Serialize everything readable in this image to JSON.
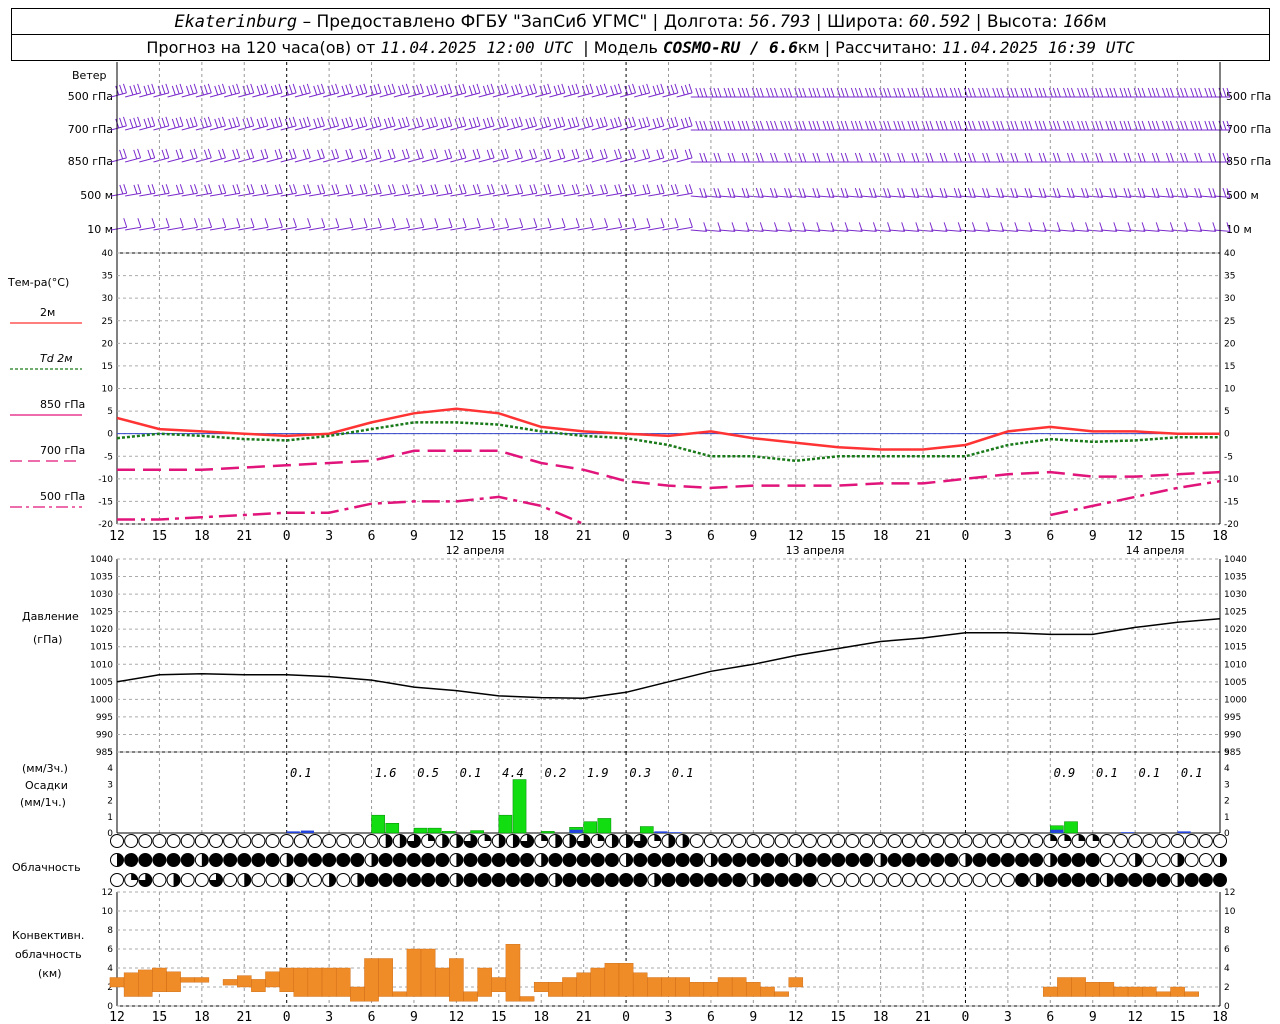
{
  "header": {
    "station": "Ekaterinburg",
    "provider": "– Предоставлено ФГБУ \"ЗапСиб УГМС\" | Долгота:",
    "lon": "56.793",
    "lat_label": "| Широта:",
    "lat": "60.592",
    "alt_label": "| Высота:",
    "alt": "166",
    "alt_unit": "м",
    "line2_a": "Прогноз на 120 часа(ов) от",
    "run": "11.04.2025 12:00 UTC",
    "line2_b": "| Модель",
    "model": "COSMO-RU / 6.6",
    "model_unit": "км",
    "line2_c": "| Рассчитано:",
    "computed": "11.04.2025 16:39 UTC"
  },
  "wind_panel": {
    "title": "Ветер",
    "levels": [
      "500 гПа",
      "700 гПа",
      "850 гПа",
      "500 м",
      "10  м"
    ]
  },
  "temp_panel": {
    "title": "Тем-ра(°C)",
    "legend": [
      {
        "label": "2м",
        "color": "#ff3333",
        "style": "solid"
      },
      {
        "label": "Td  2м",
        "color": "#1a7a1a",
        "style": "dotted"
      },
      {
        "label": "850 гПа",
        "color": "#e0147a",
        "style": "solid"
      },
      {
        "label": "700 гПа",
        "color": "#e0147a",
        "style": "dashed"
      },
      {
        "label": "500 гПа",
        "color": "#e0147a",
        "style": "dashdot"
      }
    ]
  },
  "pressure_panel": {
    "title": "Давление",
    "unit": "(гПа)"
  },
  "precip_panel": {
    "title_a": "(мм/3ч.)",
    "title_b": "Осадки",
    "title_c": "(мм/1ч.)"
  },
  "cloud_panel": {
    "title": "Облачность"
  },
  "conv_panel": {
    "title_a": "Конвективн.",
    "title_b": "облачность",
    "title_c": "(км)"
  },
  "date_labels": [
    "12 апреля",
    "13 апреля",
    "14 апреля"
  ],
  "x_ticks": [
    "12",
    "15",
    "18",
    "21",
    "0",
    "3",
    "6",
    "9",
    "12",
    "15",
    "18",
    "21",
    "0",
    "3",
    "6",
    "9",
    "12",
    "15",
    "18",
    "21",
    "0",
    "3",
    "6",
    "9",
    "12",
    "15",
    "18"
  ],
  "chart_data": {
    "type": "line",
    "x_hours": [
      0,
      3,
      6,
      9,
      12,
      15,
      18,
      21,
      24,
      27,
      30,
      33,
      36,
      39,
      42,
      45,
      48,
      51,
      54,
      57,
      60,
      63,
      66,
      69,
      72,
      75,
      78
    ],
    "temperature": {
      "ylim": [
        -20,
        40
      ],
      "ticks": [
        40,
        35,
        30,
        25,
        20,
        15,
        10,
        5,
        0,
        -5,
        -10,
        -15,
        -20
      ],
      "t2m": [
        3.5,
        1,
        0.5,
        0,
        -0.5,
        0,
        2.5,
        4.5,
        5.5,
        4.5,
        1.5,
        0.5,
        0,
        -0.5,
        0.5,
        -1,
        -2,
        -3,
        -3.5,
        -3.5,
        -2.5,
        0.5,
        1.5,
        0.5,
        0.5,
        0,
        0
      ],
      "td2m": [
        -1,
        0,
        -0.5,
        -1.2,
        -1.5,
        -0.5,
        1,
        2.5,
        2.5,
        2,
        0.5,
        -0.5,
        -1,
        -2.5,
        -5,
        -5,
        -6,
        -5,
        -5,
        -5,
        -5,
        -2.5,
        -1.2,
        -1.8,
        -1.5,
        -0.8,
        -0.8
      ],
      "t850": [
        null,
        null,
        null,
        null,
        null,
        null,
        null,
        null,
        null,
        null,
        null,
        null,
        null,
        null,
        null,
        null,
        null,
        null,
        null,
        null,
        null,
        null,
        null,
        null,
        null,
        null,
        null
      ],
      "t700": [
        -8,
        -8,
        -8,
        -7.5,
        -7,
        -6.5,
        -6,
        -3.8,
        -3.8,
        -3.8,
        -6.5,
        -8,
        -10.5,
        -11.5,
        -12,
        -11.5,
        -11.5,
        -11.5,
        -11,
        -11,
        -10,
        -9,
        -8.5,
        -9.5,
        -9.5,
        -9,
        -8.5
      ],
      "t500": [
        -19,
        -19,
        -18.5,
        -18,
        -17.5,
        -17.5,
        -15.5,
        -15,
        -15,
        -14,
        -16,
        -20,
        null,
        null,
        null,
        null,
        null,
        null,
        null,
        null,
        null,
        null,
        -18,
        -16,
        -14,
        -12,
        -10.5
      ]
    },
    "pressure": {
      "ylim": [
        985,
        1040
      ],
      "ticks": [
        1040,
        1035,
        1030,
        1025,
        1020,
        1015,
        1010,
        1005,
        1000,
        995,
        990,
        985
      ],
      "values": [
        1005,
        1007,
        1007.3,
        1007,
        1007,
        1006.5,
        1005.5,
        1003.5,
        1002.5,
        1001,
        1000.5,
        1000.3,
        1002,
        1005,
        1008,
        1010,
        1012.5,
        1014.5,
        1016.5,
        1017.5,
        1019,
        1019,
        1018.5,
        1018.5,
        1020.5,
        1022,
        1023
      ]
    },
    "precipitation": {
      "ylim": [
        0,
        5
      ],
      "ticks": [
        5,
        4,
        3,
        2,
        1,
        0
      ],
      "totals_3h": [
        {
          "hour": 13,
          "text": "0.1"
        },
        {
          "hour": 19,
          "text": "1.6"
        },
        {
          "hour": 22,
          "text": "0.5"
        },
        {
          "hour": 25,
          "text": "0.1"
        },
        {
          "hour": 28,
          "text": "4.4"
        },
        {
          "hour": 31,
          "text": "0.2"
        },
        {
          "hour": 34,
          "text": "1.9"
        },
        {
          "hour": 37,
          "text": "0.3"
        },
        {
          "hour": 40,
          "text": "0.1"
        },
        {
          "hour": 67,
          "text": "0.9"
        },
        {
          "hour": 70,
          "text": "0.1"
        },
        {
          "hour": 73,
          "text": "0.1"
        },
        {
          "hour": 76,
          "text": "0.1"
        }
      ],
      "rain_1h": [
        {
          "hour": 19,
          "value": 1.1
        },
        {
          "hour": 20,
          "value": 0.6
        },
        {
          "hour": 22,
          "value": 0.3
        },
        {
          "hour": 23,
          "value": 0.3
        },
        {
          "hour": 24,
          "value": 0.1
        },
        {
          "hour": 26,
          "value": 0.15
        },
        {
          "hour": 28,
          "value": 1.1
        },
        {
          "hour": 29,
          "value": 3.3
        },
        {
          "hour": 31,
          "value": 0.1
        },
        {
          "hour": 33,
          "value": 0.35
        },
        {
          "hour": 34,
          "value": 0.7
        },
        {
          "hour": 35,
          "value": 0.9
        },
        {
          "hour": 38,
          "value": 0.4
        },
        {
          "hour": 67,
          "value": 0.45
        },
        {
          "hour": 68,
          "value": 0.7
        }
      ],
      "snow_1h": [
        {
          "hour": 13,
          "value": 0.1
        },
        {
          "hour": 14,
          "value": 0.15
        },
        {
          "hour": 33,
          "value": 0.2
        },
        {
          "hour": 39,
          "value": 0.1
        },
        {
          "hour": 40,
          "value": 0.05
        },
        {
          "hour": 67,
          "value": 0.2
        },
        {
          "hour": 72,
          "value": 0.05
        },
        {
          "hour": 76,
          "value": 0.1
        }
      ]
    },
    "convective_cloud": {
      "ylim": [
        0,
        12
      ],
      "ticks": [
        12,
        10,
        8,
        6,
        4,
        2,
        0
      ],
      "bars": [
        {
          "h": 0,
          "base": 2,
          "top": 3
        },
        {
          "h": 1,
          "base": 1,
          "top": 3.5
        },
        {
          "h": 2,
          "base": 1,
          "top": 3.8
        },
        {
          "h": 3,
          "base": 1.5,
          "top": 4
        },
        {
          "h": 4,
          "base": 1.5,
          "top": 3.6
        },
        {
          "h": 5,
          "base": 2.5,
          "top": 3
        },
        {
          "h": 6,
          "base": 2.5,
          "top": 3
        },
        {
          "h": 8,
          "base": 2.2,
          "top": 2.8
        },
        {
          "h": 9,
          "base": 2,
          "top": 3.2
        },
        {
          "h": 10,
          "base": 1.5,
          "top": 2.8
        },
        {
          "h": 11,
          "base": 2,
          "top": 3.6
        },
        {
          "h": 12,
          "base": 1.5,
          "top": 4
        },
        {
          "h": 13,
          "base": 1,
          "top": 4
        },
        {
          "h": 14,
          "base": 1,
          "top": 4
        },
        {
          "h": 15,
          "base": 1,
          "top": 4
        },
        {
          "h": 16,
          "base": 1,
          "top": 4
        },
        {
          "h": 17,
          "base": 0.5,
          "top": 2
        },
        {
          "h": 18,
          "base": 0.5,
          "top": 5
        },
        {
          "h": 19,
          "base": 1,
          "top": 5
        },
        {
          "h": 20,
          "base": 1,
          "top": 1.5
        },
        {
          "h": 21,
          "base": 1,
          "top": 6
        },
        {
          "h": 22,
          "base": 1,
          "top": 6
        },
        {
          "h": 23,
          "base": 1,
          "top": 4
        },
        {
          "h": 24,
          "base": 0.5,
          "top": 5
        },
        {
          "h": 25,
          "base": 0.5,
          "top": 1.5
        },
        {
          "h": 26,
          "base": 1,
          "top": 4
        },
        {
          "h": 27,
          "base": 1.5,
          "top": 3
        },
        {
          "h": 28,
          "base": 0.5,
          "top": 6.5
        },
        {
          "h": 29,
          "base": 0.5,
          "top": 1
        },
        {
          "h": 30,
          "base": 1.5,
          "top": 2.5
        },
        {
          "h": 31,
          "base": 1,
          "top": 2.5
        },
        {
          "h": 32,
          "base": 1,
          "top": 3
        },
        {
          "h": 33,
          "base": 1,
          "top": 3.5
        },
        {
          "h": 34,
          "base": 1,
          "top": 4
        },
        {
          "h": 35,
          "base": 1,
          "top": 4.5
        },
        {
          "h": 36,
          "base": 1,
          "top": 4.5
        },
        {
          "h": 37,
          "base": 1,
          "top": 3.5
        },
        {
          "h": 38,
          "base": 1,
          "top": 3
        },
        {
          "h": 39,
          "base": 1,
          "top": 3
        },
        {
          "h": 40,
          "base": 1,
          "top": 3
        },
        {
          "h": 41,
          "base": 1,
          "top": 2.5
        },
        {
          "h": 42,
          "base": 1,
          "top": 2.5
        },
        {
          "h": 43,
          "base": 1,
          "top": 3
        },
        {
          "h": 44,
          "base": 1,
          "top": 3
        },
        {
          "h": 45,
          "base": 1,
          "top": 2.5
        },
        {
          "h": 46,
          "base": 1,
          "top": 2
        },
        {
          "h": 47,
          "base": 1,
          "top": 1.5
        },
        {
          "h": 48,
          "base": 2,
          "top": 3
        },
        {
          "h": 66,
          "base": 1,
          "top": 2
        },
        {
          "h": 67,
          "base": 1,
          "top": 3
        },
        {
          "h": 68,
          "base": 1,
          "top": 3
        },
        {
          "h": 69,
          "base": 1,
          "top": 2.5
        },
        {
          "h": 70,
          "base": 1,
          "top": 2.5
        },
        {
          "h": 71,
          "base": 1,
          "top": 2
        },
        {
          "h": 72,
          "base": 1,
          "top": 2
        },
        {
          "h": 73,
          "base": 1,
          "top": 2
        },
        {
          "h": 74,
          "base": 1,
          "top": 1.5
        },
        {
          "h": 75,
          "base": 1,
          "top": 2
        },
        {
          "h": 76,
          "base": 1,
          "top": 1.5
        }
      ]
    }
  }
}
